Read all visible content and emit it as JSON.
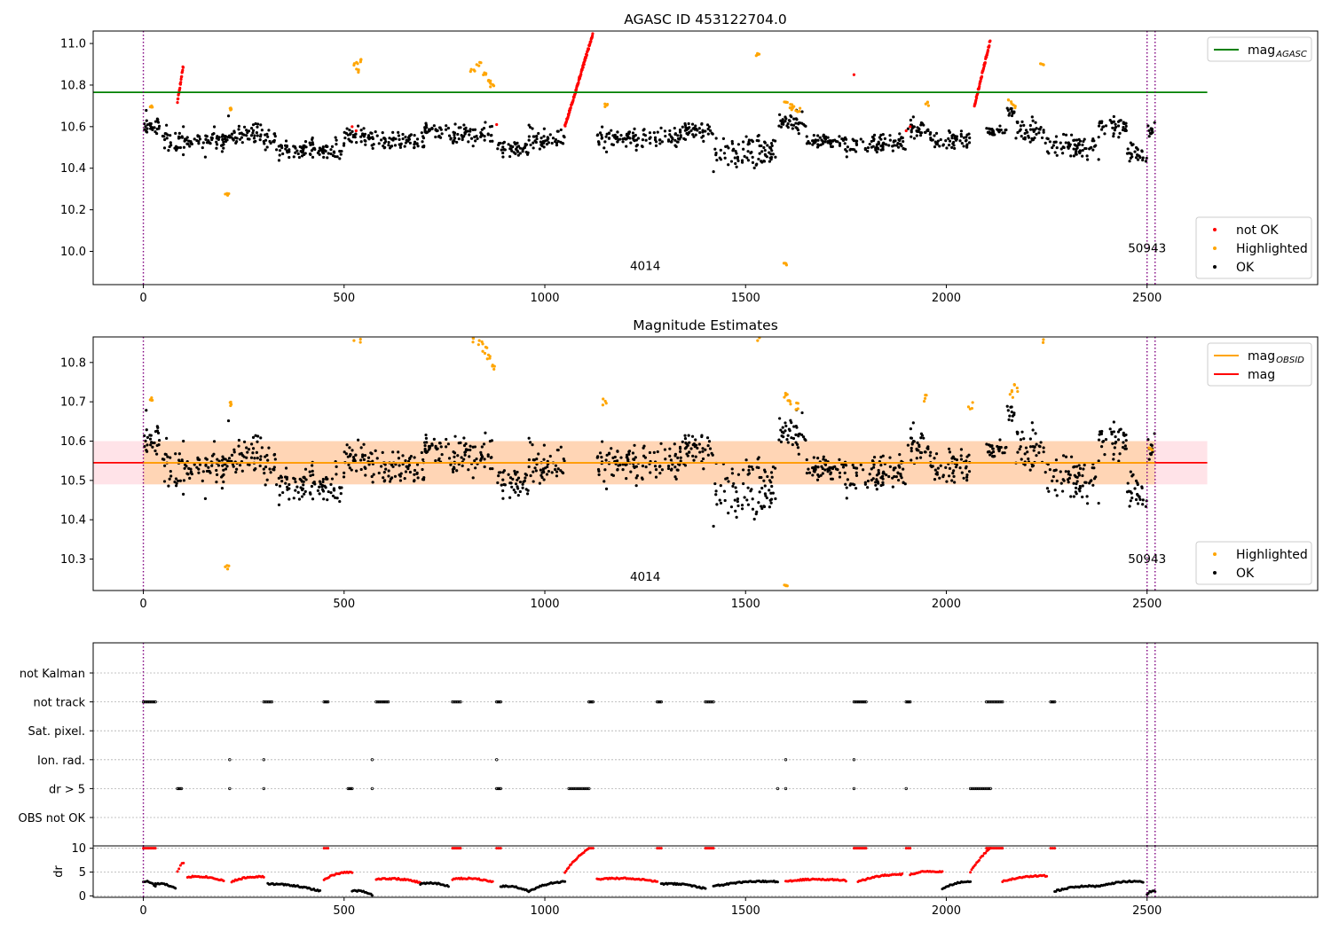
{
  "chart_data": [
    {
      "type": "scatter",
      "title": "AGASC ID 453122704.0",
      "xlim": [
        -125,
        2925
      ],
      "ylim": [
        9.84,
        11.06
      ],
      "x_ticks": [
        0,
        500,
        1000,
        1500,
        2000,
        2500
      ],
      "y_ticks": [
        10.0,
        10.2,
        10.4,
        10.6,
        10.8,
        11.0
      ],
      "y_tick_labels": [
        "10.0",
        "10.2",
        "10.4",
        "10.6",
        "10.8",
        "11.0"
      ],
      "vlines": [
        0,
        2500,
        2520
      ],
      "hline": {
        "name": "mag_AGASC",
        "label_main": "mag",
        "label_sub": "AGASC",
        "y": 10.765,
        "x_range": [
          -125,
          2650
        ],
        "color": "#008000"
      },
      "annotations": [
        {
          "text": "4014",
          "x": 1250,
          "y": 9.91
        },
        {
          "text": "50943",
          "x": 2500,
          "y": 9.995
        }
      ],
      "ok_segments": [
        [
          0,
          50,
          10.62,
          0.04
        ],
        [
          50,
          100,
          10.52,
          0.04
        ],
        [
          100,
          210,
          10.54,
          0.03
        ],
        [
          210,
          300,
          10.58,
          0.04
        ],
        [
          300,
          330,
          10.55,
          0.03
        ],
        [
          330,
          500,
          10.5,
          0.03
        ],
        [
          500,
          560,
          10.56,
          0.03
        ],
        [
          560,
          700,
          10.54,
          0.03
        ],
        [
          700,
          760,
          10.58,
          0.03
        ],
        [
          760,
          870,
          10.55,
          0.03
        ],
        [
          880,
          960,
          10.5,
          0.03
        ],
        [
          960,
          1050,
          10.52,
          0.03
        ],
        [
          1130,
          1340,
          10.54,
          0.03
        ],
        [
          1340,
          1420,
          10.6,
          0.03
        ],
        [
          1420,
          1580,
          10.48,
          0.03
        ],
        [
          1580,
          1650,
          10.63,
          0.03
        ],
        [
          1650,
          1740,
          10.52,
          0.02
        ],
        [
          1740,
          1900,
          10.52,
          0.03
        ],
        [
          1900,
          1960,
          10.61,
          0.03
        ],
        [
          1960,
          2060,
          10.52,
          0.03
        ],
        [
          2100,
          2150,
          10.56,
          0.02
        ],
        [
          2150,
          2170,
          10.67,
          0.02
        ],
        [
          2170,
          2250,
          10.58,
          0.03
        ],
        [
          2250,
          2380,
          10.5,
          0.03
        ],
        [
          2380,
          2450,
          10.62,
          0.03
        ],
        [
          2450,
          2500,
          10.47,
          0.03
        ],
        [
          2500,
          2520,
          10.58,
          0.03
        ]
      ],
      "highlighted_points": [
        [
          20,
          10.7
        ],
        [
          215,
          10.69
        ],
        [
          210,
          10.27
        ],
        [
          530,
          10.9
        ],
        [
          535,
          10.87
        ],
        [
          540,
          10.92
        ],
        [
          820,
          10.87
        ],
        [
          835,
          10.9
        ],
        [
          850,
          10.85
        ],
        [
          860,
          10.82
        ],
        [
          870,
          10.8
        ],
        [
          1150,
          10.7
        ],
        [
          1530,
          10.95
        ],
        [
          1600,
          10.71
        ],
        [
          1600,
          9.94
        ],
        [
          1610,
          10.7
        ],
        [
          1620,
          10.69
        ],
        [
          1630,
          10.68
        ],
        [
          1950,
          10.71
        ],
        [
          2160,
          10.72
        ],
        [
          2170,
          10.7
        ],
        [
          2240,
          10.9
        ]
      ],
      "notok_segments": [
        [
          85,
          100,
          10.72,
          10.9
        ],
        [
          1050,
          1120,
          10.6,
          11.05
        ],
        [
          2070,
          2110,
          10.7,
          11.02
        ]
      ],
      "notok_points": [
        [
          520,
          10.6
        ],
        [
          530,
          10.58
        ],
        [
          880,
          10.61
        ],
        [
          1770,
          10.85
        ],
        [
          1900,
          10.58
        ],
        [
          1910,
          10.6
        ]
      ],
      "legends": [
        {
          "position": "top-right",
          "items": [
            {
              "label_main": "mag",
              "label_sub": "AGASC",
              "kind": "line",
              "color": "#008000"
            }
          ]
        },
        {
          "position": "bottom-right",
          "items": [
            {
              "label_main": "not OK",
              "kind": "dot",
              "color": "#ff0000"
            },
            {
              "label_main": "Highlighted",
              "kind": "dot",
              "color": "#ffa500"
            },
            {
              "label_main": "OK",
              "kind": "dot",
              "color": "#000000"
            }
          ]
        }
      ]
    },
    {
      "type": "scatter",
      "title": "Magnitude Estimates",
      "xlim": [
        -125,
        2925
      ],
      "ylim": [
        10.22,
        10.865
      ],
      "x_ticks": [
        0,
        500,
        1000,
        1500,
        2000,
        2500
      ],
      "y_ticks": [
        10.3,
        10.4,
        10.5,
        10.6,
        10.7,
        10.8
      ],
      "y_tick_labels": [
        "10.3",
        "10.4",
        "10.5",
        "10.6",
        "10.7",
        "10.8"
      ],
      "vlines": [
        0,
        2500,
        2520
      ],
      "mag_line": {
        "y": 10.545,
        "x_range": [
          -125,
          2650
        ],
        "color": "#ff0000"
      },
      "mag_band": {
        "y_range": [
          10.49,
          10.6
        ],
        "x_range": [
          -125,
          2650
        ],
        "color": "#ffc0cb"
      },
      "mag_obsid_band": {
        "y_range": [
          10.49,
          10.6
        ],
        "x_range": [
          0,
          2520
        ],
        "color": "#ffa500"
      },
      "mag_obsid_line": {
        "y": 10.545,
        "x_range": [
          0,
          2520
        ],
        "color": "#ffa500"
      },
      "annotations": [
        {
          "text": "4014",
          "x": 1250,
          "y": 10.245
        },
        {
          "text": "50943",
          "x": 2500,
          "y": 10.29
        }
      ],
      "ok_segments": [
        [
          0,
          50,
          10.62,
          0.04
        ],
        [
          50,
          100,
          10.52,
          0.04
        ],
        [
          100,
          210,
          10.54,
          0.03
        ],
        [
          210,
          300,
          10.58,
          0.04
        ],
        [
          300,
          330,
          10.55,
          0.03
        ],
        [
          330,
          500,
          10.5,
          0.03
        ],
        [
          500,
          560,
          10.56,
          0.03
        ],
        [
          560,
          700,
          10.54,
          0.03
        ],
        [
          700,
          760,
          10.58,
          0.03
        ],
        [
          760,
          870,
          10.55,
          0.03
        ],
        [
          880,
          960,
          10.5,
          0.03
        ],
        [
          960,
          1050,
          10.52,
          0.03
        ],
        [
          1130,
          1340,
          10.54,
          0.03
        ],
        [
          1340,
          1420,
          10.6,
          0.03
        ],
        [
          1420,
          1580,
          10.48,
          0.03
        ],
        [
          1580,
          1650,
          10.63,
          0.03
        ],
        [
          1650,
          1740,
          10.52,
          0.02
        ],
        [
          1740,
          1900,
          10.52,
          0.03
        ],
        [
          1900,
          1960,
          10.61,
          0.03
        ],
        [
          1960,
          2060,
          10.52,
          0.03
        ],
        [
          2100,
          2150,
          10.56,
          0.02
        ],
        [
          2150,
          2170,
          10.67,
          0.02
        ],
        [
          2170,
          2250,
          10.58,
          0.03
        ],
        [
          2250,
          2380,
          10.5,
          0.03
        ],
        [
          2380,
          2450,
          10.62,
          0.03
        ],
        [
          2450,
          2500,
          10.47,
          0.03
        ],
        [
          2500,
          2520,
          10.58,
          0.03
        ]
      ],
      "highlighted_points": [
        [
          20,
          10.71
        ],
        [
          215,
          10.7
        ],
        [
          210,
          10.275
        ],
        [
          530,
          10.86
        ],
        [
          540,
          10.86
        ],
        [
          820,
          10.86
        ],
        [
          840,
          10.85
        ],
        [
          850,
          10.83
        ],
        [
          860,
          10.81
        ],
        [
          870,
          10.79
        ],
        [
          1150,
          10.7
        ],
        [
          1530,
          10.86
        ],
        [
          1600,
          10.72
        ],
        [
          1600,
          10.225
        ],
        [
          1610,
          10.7
        ],
        [
          1625,
          10.69
        ],
        [
          1950,
          10.71
        ],
        [
          2060,
          10.69
        ],
        [
          2160,
          10.72
        ],
        [
          2175,
          10.735
        ],
        [
          2240,
          10.86
        ],
        [
          2510,
          10.58
        ]
      ],
      "legends": [
        {
          "position": "top-right",
          "items": [
            {
              "label_main": "mag",
              "label_sub": "OBSID",
              "kind": "line",
              "color": "#ffa500"
            },
            {
              "label_main": "mag",
              "kind": "line",
              "color": "#ff0000"
            }
          ]
        },
        {
          "position": "bottom-right",
          "items": [
            {
              "label_main": "Highlighted",
              "kind": "dot",
              "color": "#ffa500"
            },
            {
              "label_main": "OK",
              "kind": "dot",
              "color": "#000000"
            }
          ]
        }
      ]
    },
    {
      "type": "scatter",
      "title": "",
      "xlim": [
        -125,
        2925
      ],
      "categories": [
        "not Kalman",
        "not track",
        "Sat. pixel.",
        "Ion. rad.",
        "dr > 5",
        "OBS not OK"
      ],
      "vlines": [
        0,
        2500,
        2520
      ],
      "flag_points": {
        "not track": [
          [
            0,
            30
          ],
          [
            300,
            320
          ],
          [
            450,
            460
          ],
          [
            580,
            610
          ],
          [
            770,
            790
          ],
          [
            880,
            890
          ],
          [
            1110,
            1120
          ],
          [
            1280,
            1290
          ],
          [
            1400,
            1420
          ],
          [
            1770,
            1800
          ],
          [
            1900,
            1910
          ],
          [
            2100,
            2140
          ],
          [
            2260,
            2270
          ]
        ],
        "Ion. rad.": [
          [
            215,
            215
          ],
          [
            300,
            300
          ],
          [
            570,
            570
          ],
          [
            880,
            880
          ],
          [
            1600,
            1600
          ],
          [
            1770,
            1770
          ]
        ],
        "dr > 5": [
          [
            85,
            95
          ],
          [
            215,
            215
          ],
          [
            300,
            300
          ],
          [
            510,
            520
          ],
          [
            570,
            570
          ],
          [
            880,
            890
          ],
          [
            1060,
            1110
          ],
          [
            1580,
            1580
          ],
          [
            1600,
            1600
          ],
          [
            1770,
            1770
          ],
          [
            1900,
            1900
          ],
          [
            2060,
            2110
          ]
        ]
      }
    },
    {
      "type": "scatter",
      "title": "",
      "xlim": [
        -125,
        2925
      ],
      "ylim": [
        -0.3,
        10.5
      ],
      "y_ticks": [
        0,
        5,
        10
      ],
      "y_tick_labels": [
        "0",
        "5",
        "10"
      ],
      "x_ticks": [
        0,
        500,
        1000,
        1500,
        2000,
        2500
      ],
      "ylabel": "dr",
      "vlines": [
        0,
        2500,
        2520
      ],
      "dr_segments": [
        {
          "x": [
            0,
            30
          ],
          "y": [
            3.0,
            2.0
          ],
          "flag": false
        },
        {
          "x": [
            30,
            80
          ],
          "y": [
            2.5,
            1.5
          ],
          "flag": false
        },
        {
          "x": [
            85,
            100
          ],
          "y": [
            5.0,
            7.0
          ],
          "flag": true
        },
        {
          "x": [
            110,
            200
          ],
          "y": [
            4.0,
            3.2
          ],
          "flag": true
        },
        {
          "x": [
            220,
            300
          ],
          "y": [
            3.0,
            4.0
          ],
          "flag": true
        },
        {
          "x": [
            310,
            440
          ],
          "y": [
            2.5,
            1.0
          ],
          "flag": false
        },
        {
          "x": [
            450,
            520
          ],
          "y": [
            3.5,
            5.0
          ],
          "flag": true
        },
        {
          "x": [
            520,
            570
          ],
          "y": [
            1.0,
            0.2
          ],
          "flag": false
        },
        {
          "x": [
            580,
            690
          ],
          "y": [
            3.5,
            2.8
          ],
          "flag": true
        },
        {
          "x": [
            690,
            760
          ],
          "y": [
            2.5,
            2.0
          ],
          "flag": false
        },
        {
          "x": [
            770,
            870
          ],
          "y": [
            3.5,
            3.0
          ],
          "flag": true
        },
        {
          "x": [
            890,
            960
          ],
          "y": [
            2.0,
            1.0
          ],
          "flag": false
        },
        {
          "x": [
            960,
            1050
          ],
          "y": [
            1.0,
            3.0
          ],
          "flag": false
        },
        {
          "x": [
            1050,
            1110
          ],
          "y": [
            5.0,
            10.0
          ],
          "flag": true
        },
        {
          "x": [
            1130,
            1280
          ],
          "y": [
            3.5,
            3.0
          ],
          "flag": true
        },
        {
          "x": [
            1290,
            1400
          ],
          "y": [
            2.5,
            1.5
          ],
          "flag": false
        },
        {
          "x": [
            1420,
            1580
          ],
          "y": [
            2.0,
            3.0
          ],
          "flag": false
        },
        {
          "x": [
            1600,
            1750
          ],
          "y": [
            3.0,
            3.2
          ],
          "flag": true
        },
        {
          "x": [
            1780,
            1890
          ],
          "y": [
            3.0,
            4.5
          ],
          "flag": true
        },
        {
          "x": [
            1910,
            1990
          ],
          "y": [
            4.5,
            5.0
          ],
          "flag": true
        },
        {
          "x": [
            1990,
            2060
          ],
          "y": [
            1.5,
            3.0
          ],
          "flag": false
        },
        {
          "x": [
            2060,
            2110
          ],
          "y": [
            5.0,
            10.0
          ],
          "flag": true
        },
        {
          "x": [
            2140,
            2250
          ],
          "y": [
            3.0,
            4.2
          ],
          "flag": true
        },
        {
          "x": [
            2270,
            2380
          ],
          "y": [
            1.0,
            2.0
          ],
          "flag": false
        },
        {
          "x": [
            2380,
            2490
          ],
          "y": [
            2.0,
            3.0
          ],
          "flag": false
        },
        {
          "x": [
            2500,
            2520
          ],
          "y": [
            0.3,
            0.8
          ],
          "flag": false
        }
      ],
      "dr_capped": [
        [
          0,
          30
        ],
        [
          450,
          460
        ],
        [
          770,
          790
        ],
        [
          880,
          890
        ],
        [
          1110,
          1120
        ],
        [
          1280,
          1290
        ],
        [
          1400,
          1420
        ],
        [
          1770,
          1800
        ],
        [
          1900,
          1910
        ],
        [
          2100,
          2140
        ],
        [
          2260,
          2270
        ]
      ]
    }
  ]
}
